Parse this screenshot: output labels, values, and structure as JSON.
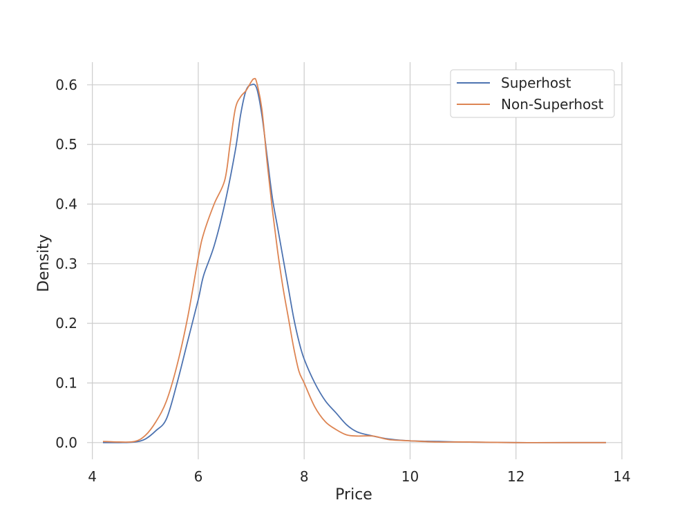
{
  "chart_data": {
    "type": "line",
    "title": "",
    "xlabel": "Price",
    "ylabel": "Density",
    "xlim": [
      3.9,
      14.0
    ],
    "ylim": [
      -0.028,
      0.638
    ],
    "xticks": [
      4,
      6,
      8,
      10,
      12,
      14
    ],
    "xtick_labels": [
      "4",
      "6",
      "8",
      "10",
      "12",
      "14"
    ],
    "yticks": [
      0.0,
      0.1,
      0.2,
      0.3,
      0.4,
      0.5,
      0.6
    ],
    "ytick_labels": [
      "0.0",
      "0.1",
      "0.2",
      "0.3",
      "0.4",
      "0.5",
      "0.6"
    ],
    "grid": true,
    "legend_position": "top-right",
    "series": [
      {
        "name": "Superhost",
        "color": "#4c72b0",
        "x": [
          4.2,
          4.5,
          4.8,
          5.0,
          5.2,
          5.4,
          5.6,
          5.8,
          6.0,
          6.1,
          6.3,
          6.5,
          6.7,
          6.8,
          6.9,
          7.0,
          7.1,
          7.2,
          7.3,
          7.4,
          7.5,
          7.6,
          7.7,
          7.8,
          7.9,
          8.0,
          8.2,
          8.4,
          8.6,
          8.8,
          9.0,
          9.3,
          9.6,
          10.0,
          10.5,
          11.0,
          12.0,
          13.0,
          13.7
        ],
        "y": [
          0.0,
          0.0,
          0.001,
          0.006,
          0.02,
          0.04,
          0.1,
          0.17,
          0.24,
          0.28,
          0.33,
          0.4,
          0.49,
          0.55,
          0.59,
          0.6,
          0.595,
          0.55,
          0.48,
          0.41,
          0.36,
          0.31,
          0.26,
          0.21,
          0.17,
          0.14,
          0.1,
          0.07,
          0.05,
          0.03,
          0.018,
          0.011,
          0.006,
          0.003,
          0.002,
          0.001,
          0.0,
          0.0,
          0.0
        ]
      },
      {
        "name": "Non-Superhost",
        "color": "#dd8452",
        "x": [
          4.2,
          4.5,
          4.8,
          5.0,
          5.2,
          5.4,
          5.6,
          5.8,
          6.0,
          6.1,
          6.3,
          6.5,
          6.6,
          6.7,
          6.8,
          6.9,
          7.0,
          7.05,
          7.1,
          7.2,
          7.3,
          7.4,
          7.5,
          7.6,
          7.7,
          7.8,
          7.9,
          8.0,
          8.2,
          8.4,
          8.6,
          8.8,
          9.0,
          9.3,
          9.6,
          10.0,
          10.5,
          11.0,
          12.0,
          13.0,
          13.7
        ],
        "y": [
          0.002,
          0.001,
          0.002,
          0.012,
          0.035,
          0.07,
          0.13,
          0.21,
          0.31,
          0.35,
          0.4,
          0.44,
          0.5,
          0.56,
          0.58,
          0.59,
          0.605,
          0.61,
          0.605,
          0.56,
          0.47,
          0.39,
          0.32,
          0.26,
          0.21,
          0.16,
          0.12,
          0.1,
          0.06,
          0.035,
          0.022,
          0.013,
          0.011,
          0.011,
          0.005,
          0.003,
          0.001,
          0.001,
          0.0,
          0.0,
          0.0
        ]
      }
    ]
  }
}
